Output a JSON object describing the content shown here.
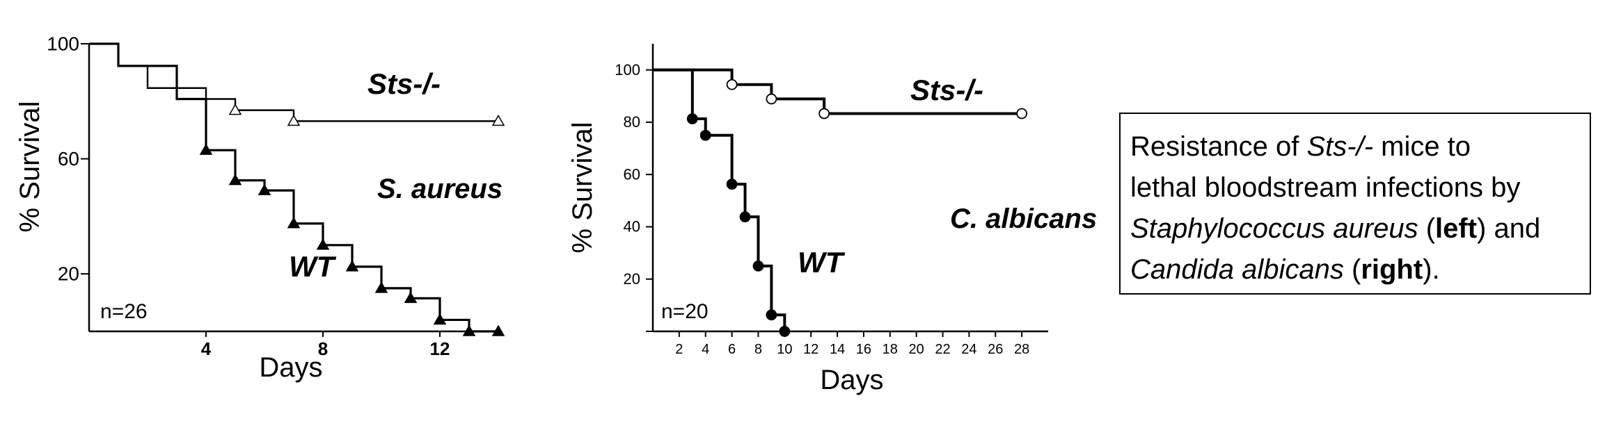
{
  "chart_data": [
    {
      "type": "line",
      "step": true,
      "xlabel": "Days",
      "ylabel": "% Survival",
      "xlim": [
        0,
        14
      ],
      "ylim": [
        0,
        100
      ],
      "xticks": [
        4,
        8,
        12
      ],
      "xtick_labels": [
        "4",
        "8",
        "12"
      ],
      "yticks": [
        20,
        60,
        100
      ],
      "ytick_labels": [
        "20",
        "60",
        "100"
      ],
      "annotations": [
        "S. aureus",
        "n=26"
      ],
      "series": [
        {
          "name": "Sts-/-",
          "marker": "open-triangle",
          "steps": [
            [
              0,
              100
            ],
            [
              1,
              92.3
            ],
            [
              2,
              84.6
            ],
            [
              4,
              80.8
            ],
            [
              5,
              76.9
            ],
            [
              7,
              73.1
            ],
            [
              14,
              73.1
            ]
          ],
          "markers": [
            [
              5,
              76.9
            ],
            [
              7,
              73.1
            ],
            [
              14,
              73.1
            ]
          ]
        },
        {
          "name": "WT",
          "marker": "filled-triangle",
          "steps": [
            [
              0,
              100
            ],
            [
              1,
              92.3
            ],
            [
              3,
              80.8
            ],
            [
              4,
              63
            ],
            [
              5,
              52.5
            ],
            [
              6,
              49
            ],
            [
              7,
              37.5
            ],
            [
              8,
              30
            ],
            [
              9,
              22.5
            ],
            [
              10,
              15
            ],
            [
              11,
              11.5
            ],
            [
              12,
              4
            ],
            [
              13,
              0
            ],
            [
              14,
              0
            ]
          ],
          "markers": [
            [
              4,
              63
            ],
            [
              5,
              52.5
            ],
            [
              6,
              49
            ],
            [
              7,
              37.5
            ],
            [
              8,
              30
            ],
            [
              9,
              22.5
            ],
            [
              10,
              15
            ],
            [
              11,
              11.5
            ],
            [
              12,
              4
            ],
            [
              13,
              0
            ],
            [
              14,
              0
            ]
          ]
        }
      ]
    },
    {
      "type": "line",
      "step": true,
      "xlabel": "Days",
      "ylabel": "% Survival",
      "xlim": [
        0,
        30
      ],
      "ylim": [
        0,
        110
      ],
      "xticks": [
        2,
        4,
        6,
        8,
        10,
        12,
        14,
        16,
        18,
        20,
        22,
        24,
        26,
        28
      ],
      "xtick_labels": [
        "2",
        "4",
        "6",
        "8",
        "10",
        "12",
        "14",
        "16",
        "18",
        "20",
        "22",
        "24",
        "26",
        "28"
      ],
      "yticks": [
        20,
        40,
        60,
        80,
        100
      ],
      "ytick_labels": [
        "20",
        "40",
        "60",
        "80",
        "100"
      ],
      "annotations": [
        "C. albicans",
        "n=20"
      ],
      "series": [
        {
          "name": "Sts-/-",
          "marker": "open-circle",
          "steps": [
            [
              0,
              100
            ],
            [
              6,
              94.4
            ],
            [
              9,
              88.9
            ],
            [
              13,
              83.3
            ],
            [
              28,
              83.3
            ]
          ],
          "markers": [
            [
              6,
              94.4
            ],
            [
              9,
              88.9
            ],
            [
              13,
              83.3
            ],
            [
              28,
              83.3
            ]
          ]
        },
        {
          "name": "WT",
          "marker": "filled-circle",
          "steps": [
            [
              0,
              100
            ],
            [
              3,
              81.3
            ],
            [
              4,
              75
            ],
            [
              6,
              56.3
            ],
            [
              7,
              43.8
            ],
            [
              8,
              25
            ],
            [
              9,
              6.3
            ],
            [
              10,
              0
            ]
          ],
          "markers": [
            [
              3,
              81.3
            ],
            [
              4,
              75
            ],
            [
              6,
              56.3
            ],
            [
              7,
              43.8
            ],
            [
              8,
              25
            ],
            [
              9,
              6.3
            ],
            [
              10,
              0
            ]
          ]
        }
      ]
    }
  ],
  "caption": {
    "line1_pre": "Resistance of ",
    "line1_italic": "Sts-/-",
    "line1_post": " mice to",
    "line2": "lethal bloodstream infections by",
    "line3_italic": "Staphylococcus aureus",
    "line3_mid": " (",
    "line3_bold": "left",
    "line3_post": ") and",
    "line4_italic": "Candida albicans",
    "line4_mid": " (",
    "line4_bold": "right",
    "line4_post": ")."
  }
}
